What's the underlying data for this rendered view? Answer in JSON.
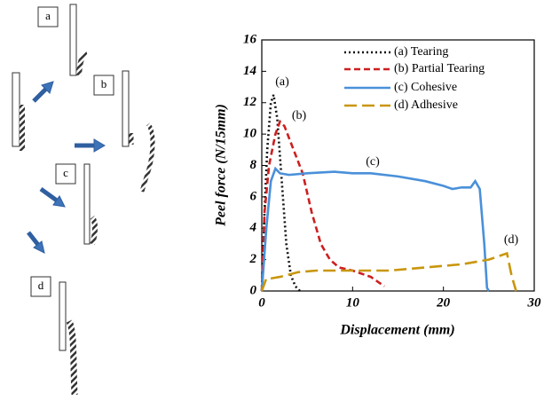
{
  "diagram": {
    "labels": [
      "a",
      "b",
      "c",
      "d"
    ]
  },
  "chart_data": {
    "type": "line",
    "xlabel": "Displacement (mm)",
    "ylabel": "Peel force (N/15mm)",
    "xlim": [
      0,
      30
    ],
    "xticks": [
      0,
      10,
      20,
      30
    ],
    "ylim": [
      0,
      16
    ],
    "yticks": [
      0,
      2,
      4,
      6,
      8,
      10,
      12,
      14,
      16
    ],
    "annotations": [
      "(a)",
      "(b)",
      "(c)",
      "(d)"
    ],
    "series": [
      {
        "name": "(a) Tearing",
        "color": "#111111",
        "linestyle": "dotted",
        "x": [
          0,
          0.3,
          0.6,
          1.0,
          1.3,
          1.7,
          2.2,
          2.7,
          3.2,
          3.7,
          4.2
        ],
        "values": [
          0,
          5,
          9,
          12,
          12.5,
          11,
          7,
          3,
          1,
          0.3,
          0
        ]
      },
      {
        "name": "(b) Partial Tearing",
        "color": "#cc1f1f",
        "linestyle": "dashed",
        "x": [
          0,
          0.3,
          0.8,
          1.5,
          2.0,
          2.5,
          3.5,
          4.5,
          5.5,
          6.5,
          7.5,
          8.5,
          10,
          12,
          13.5
        ],
        "values": [
          0,
          5,
          8,
          10,
          10.8,
          10.5,
          9,
          7.5,
          5,
          3,
          2,
          1.5,
          1.3,
          0.9,
          0.3
        ]
      },
      {
        "name": "(c) Cohesive",
        "color": "#4a90d9",
        "linestyle": "solid",
        "x": [
          0,
          0.5,
          1,
          1.5,
          2,
          3,
          5,
          8,
          10,
          12,
          15,
          18,
          20,
          21,
          22,
          23,
          23.5,
          24,
          24.5,
          24.8,
          25
        ],
        "values": [
          0,
          4,
          7,
          7.8,
          7.5,
          7.4,
          7.5,
          7.6,
          7.5,
          7.5,
          7.3,
          7.0,
          6.7,
          6.5,
          6.6,
          6.6,
          7.0,
          6.5,
          3,
          0.2,
          0
        ]
      },
      {
        "name": "(d) Adhesive",
        "color": "#c9960c",
        "linestyle": "longdash",
        "x": [
          0,
          0.5,
          1,
          2,
          4,
          6,
          10,
          14,
          18,
          22,
          25,
          26,
          27,
          27.5,
          28
        ],
        "values": [
          0,
          0.8,
          0.8,
          0.9,
          1.2,
          1.3,
          1.3,
          1.3,
          1.5,
          1.7,
          2.0,
          2.2,
          2.4,
          1.0,
          0
        ]
      }
    ]
  }
}
